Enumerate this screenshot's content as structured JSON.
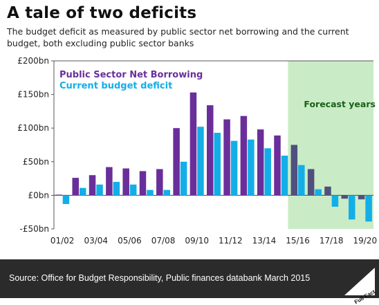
{
  "title": "A tale of two deficits",
  "subtitle": "The budget deficit as measured by public sector net borrowing and the current budget, both excluding public sector banks",
  "source": "Source: Office for Budget Responsibility, Public finances databank March 2015",
  "logo_text": "Full Fact",
  "forecast_label": "Forecast years",
  "colors": {
    "psnb": "#6a2e9a",
    "psnb_forecast": "#50507e",
    "current": "#13aee8",
    "forecast_bg": "#c9ecc6",
    "forecast_text": "#1a5e1a",
    "footer_bg": "#2b2b2b"
  },
  "chart_data": {
    "type": "bar",
    "categories": [
      "01/02",
      "02/03",
      "03/04",
      "04/05",
      "05/06",
      "06/07",
      "07/08",
      "08/09",
      "09/10",
      "10/11",
      "11/12",
      "12/13",
      "13/14",
      "14/15",
      "15/16",
      "16/17",
      "17/18",
      "18/19",
      "19/20"
    ],
    "tick_labels": [
      "01/02",
      "",
      "03/04",
      "",
      "05/06",
      "",
      "07/08",
      "",
      "09/10",
      "",
      "11/12",
      "",
      "13/14",
      "",
      "15/16",
      "",
      "17/18",
      "",
      "19/20"
    ],
    "series": [
      {
        "name": "Public Sector Net Borrowing",
        "values": [
          1,
          26,
          30,
          42,
          40,
          36,
          39,
          100,
          153,
          134,
          113,
          118,
          98,
          89,
          75,
          39,
          13,
          -5,
          -6
        ]
      },
      {
        "name": "Current budget deficit",
        "values": [
          -13,
          11,
          16,
          20,
          16,
          8,
          8,
          50,
          102,
          93,
          81,
          83,
          70,
          59,
          45,
          9,
          -17,
          -36,
          -39
        ]
      }
    ],
    "forecast_start_index": 14,
    "ylim": [
      -50,
      200
    ],
    "yticks": [
      -50,
      0,
      50,
      100,
      150,
      200
    ],
    "ytick_labels": [
      "-£50bn",
      "£0bn",
      "£50bn",
      "£100bn",
      "£150bn",
      "£200bn"
    ],
    "legend_position": "top-left",
    "grid": false
  }
}
